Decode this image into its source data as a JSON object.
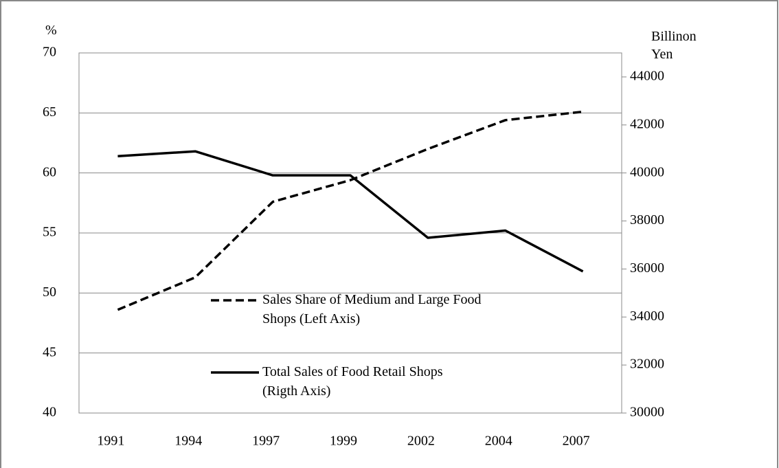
{
  "chart_data": {
    "type": "line",
    "y_label": "%",
    "y2_label": "Billinon Yen",
    "categories": [
      "1991",
      "1994",
      "1997",
      "1999",
      "2002",
      "2004",
      "2007"
    ],
    "series": [
      {
        "name": "Sales Share of Medium and Large Food Shops (Left Axis)",
        "color": "#000000",
        "dash": true,
        "axis": "y",
        "values": [
          48.6,
          51.3,
          57.6,
          59.4,
          62.0,
          64.4,
          65.1
        ]
      },
      {
        "name": "Total Sales of Food Retail Shops (Rigth Axis)",
        "color": "#000000",
        "dash": false,
        "axis": "y2",
        "values": [
          40700,
          40900,
          39900,
          39900,
          37300,
          37600,
          35900
        ]
      }
    ],
    "ylim": [
      40,
      70
    ],
    "yticks": [
      40,
      45,
      50,
      55,
      60,
      65,
      70
    ],
    "y2lim": [
      30000,
      45000
    ],
    "y2ticks": [
      30000,
      32000,
      34000,
      36000,
      38000,
      40000,
      42000,
      44000
    ],
    "grid": true
  }
}
